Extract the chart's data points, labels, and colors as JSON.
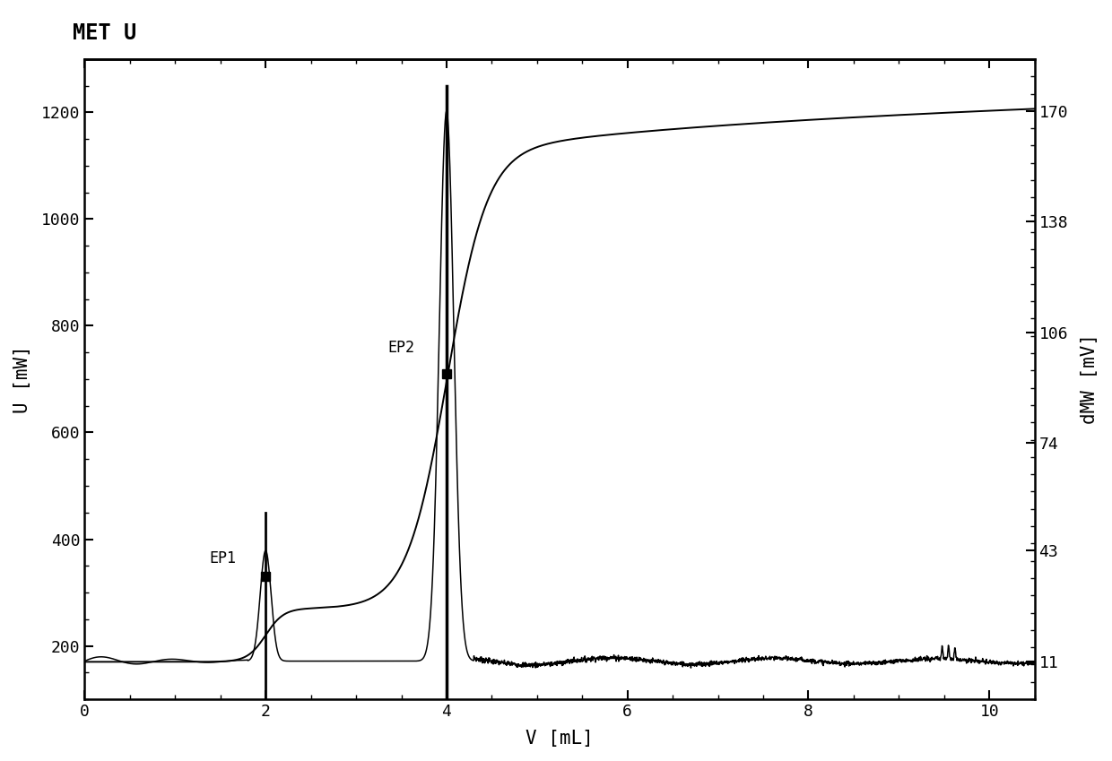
{
  "title": "MET U",
  "xlabel": "V [mL]",
  "ylabel_left": "U [mW]",
  "ylabel_right": "dMW [mV]",
  "xlim": [
    0,
    10.5
  ],
  "ylim_left": [
    100,
    1300
  ],
  "ylim_right": [
    0,
    185
  ],
  "yticks_left": [
    200,
    400,
    600,
    800,
    1000,
    1200
  ],
  "yticks_right": [
    11,
    43,
    74,
    106,
    138,
    170
  ],
  "xticks": [
    0,
    2,
    4,
    6,
    8,
    10
  ],
  "ep1_x": 2.0,
  "ep2_x": 4.0,
  "background_color": "#ffffff",
  "line_color": "#000000",
  "font_color": "#000000"
}
